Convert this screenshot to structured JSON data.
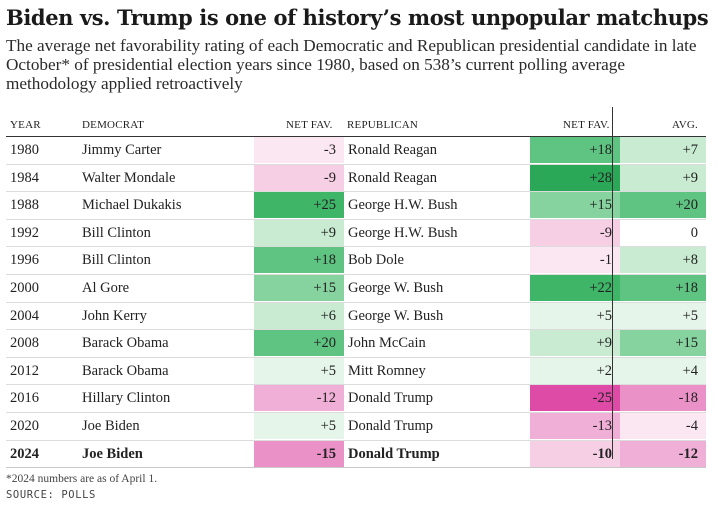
{
  "title": "Biden vs. Trump is one of history’s most unpopular matchups",
  "subtitle": "The average net favorability rating of each Democratic and Republican presidential candidate in late October* of presidential election years since 1980, based on 538’s current polling average methodology applied retroactively",
  "colors": {
    "positive_scale": [
      "#ffffff",
      "#e6f5ea",
      "#c8ebd2",
      "#a6dfb8",
      "#86d39f",
      "#5fc481",
      "#3fb568",
      "#2aa857"
    ],
    "negative_scale": [
      "#ffffff",
      "#fbe7f2",
      "#f6cfe5",
      "#f0afd7",
      "#ea92c8",
      "#e46fb7",
      "#de4ba6"
    ]
  },
  "chart_data": {
    "type": "table",
    "columns": [
      "YEAR",
      "DEMOCRAT",
      "NET FAV.",
      "REPUBLICAN",
      "NET FAV.",
      "AVG."
    ],
    "rows": [
      {
        "year": "1980",
        "democrat": "Jimmy Carter",
        "dem_fav": "-3",
        "republican": "Ronald Reagan",
        "rep_fav": "+18",
        "avg": "+7"
      },
      {
        "year": "1984",
        "democrat": "Walter Mondale",
        "dem_fav": "-9",
        "republican": "Ronald Reagan",
        "rep_fav": "+28",
        "avg": "+9"
      },
      {
        "year": "1988",
        "democrat": "Michael Dukakis",
        "dem_fav": "+25",
        "republican": "George H.W. Bush",
        "rep_fav": "+15",
        "avg": "+20"
      },
      {
        "year": "1992",
        "democrat": "Bill Clinton",
        "dem_fav": "+9",
        "republican": "George H.W. Bush",
        "rep_fav": "-9",
        "avg": "0"
      },
      {
        "year": "1996",
        "democrat": "Bill Clinton",
        "dem_fav": "+18",
        "republican": "Bob Dole",
        "rep_fav": "-1",
        "avg": "+8"
      },
      {
        "year": "2000",
        "democrat": "Al Gore",
        "dem_fav": "+15",
        "republican": "George W. Bush",
        "rep_fav": "+22",
        "avg": "+18"
      },
      {
        "year": "2004",
        "democrat": "John Kerry",
        "dem_fav": "+6",
        "republican": "George W. Bush",
        "rep_fav": "+5",
        "avg": "+5"
      },
      {
        "year": "2008",
        "democrat": "Barack Obama",
        "dem_fav": "+20",
        "republican": "John McCain",
        "rep_fav": "+9",
        "avg": "+15"
      },
      {
        "year": "2012",
        "democrat": "Barack Obama",
        "dem_fav": "+5",
        "republican": "Mitt Romney",
        "rep_fav": "+2",
        "avg": "+4"
      },
      {
        "year": "2016",
        "democrat": "Hillary Clinton",
        "dem_fav": "-12",
        "republican": "Donald Trump",
        "rep_fav": "-25",
        "avg": "-18"
      },
      {
        "year": "2020",
        "democrat": "Joe Biden",
        "dem_fav": "+5",
        "republican": "Donald Trump",
        "rep_fav": "-13",
        "avg": "-4"
      },
      {
        "year": "2024",
        "democrat": "Joe Biden",
        "dem_fav": "-15",
        "republican": "Donald Trump",
        "rep_fav": "-10",
        "avg": "-12",
        "bold": true
      }
    ]
  },
  "footnote": "*2024 numbers are as of April 1.",
  "source": "SOURCE: POLLS"
}
